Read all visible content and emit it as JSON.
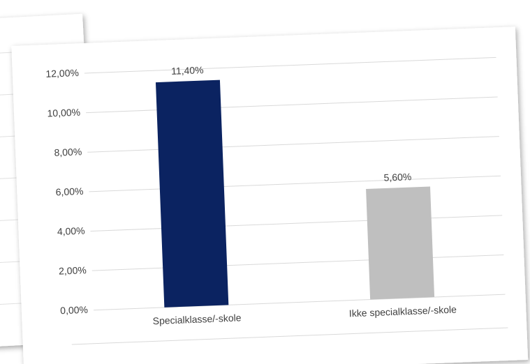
{
  "chart_data": {
    "type": "bar",
    "categories": [
      "Specialklasse/-skole",
      "Ikke specialklasse/-skole"
    ],
    "series": [
      {
        "values": [
          11.4,
          5.6
        ],
        "value_labels": [
          "11,40%",
          "5,60%"
        ],
        "colors": [
          "#0b2361",
          "#bfbfbf"
        ]
      }
    ],
    "ylim": [
      0,
      12
    ],
    "yticks": [
      {
        "value": 0,
        "label": "0,00%"
      },
      {
        "value": 2,
        "label": "2,00%"
      },
      {
        "value": 4,
        "label": "4,00%"
      },
      {
        "value": 6,
        "label": "6,00%"
      },
      {
        "value": 8,
        "label": "8,00%"
      },
      {
        "value": 10,
        "label": "10,00%"
      },
      {
        "value": 12,
        "label": "12,00%"
      }
    ],
    "grid": true
  }
}
